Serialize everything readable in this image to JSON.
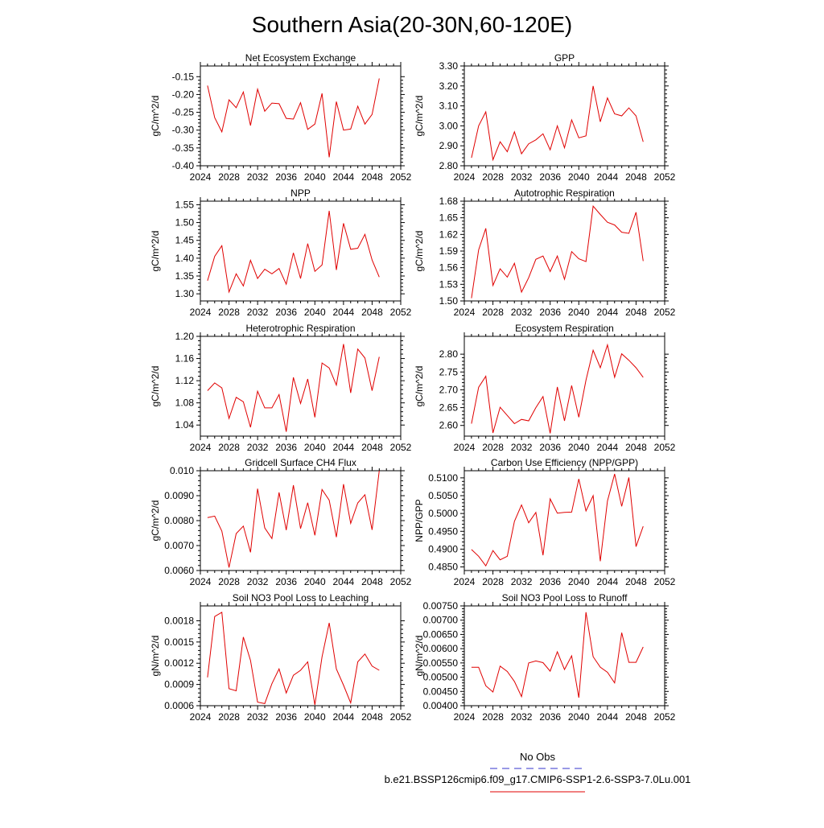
{
  "figure": {
    "title": "Southern Asia(20-30N,60-120E)"
  },
  "legend": {
    "obs_label": "No Obs",
    "obs_color": "#3333cc",
    "case_label": "b.e21.BSSP126cmip6.f09_g17.CMIP6-SSP1-2.6-SSP3-7.0Lu.001",
    "case_color": "#e00000"
  },
  "chart_data": [
    {
      "type": "line",
      "title": "Net Ecosystem Exchange",
      "ylabel": "gC/m^2/d",
      "xlim": [
        2024,
        2052
      ],
      "xticks": [
        "2024",
        "2028",
        "2032",
        "2036",
        "2040",
        "2044",
        "2048",
        "2052"
      ],
      "ylim": [
        -0.4,
        -0.12
      ],
      "yticks": [
        "-0.15",
        "-0.20",
        "-0.25",
        "-0.30",
        "-0.35",
        "-0.40"
      ],
      "yticks_values": [
        -0.15,
        -0.2,
        -0.25,
        -0.3,
        -0.35,
        -0.4
      ],
      "x": [
        2025,
        2026,
        2027,
        2028,
        2029,
        2030,
        2031,
        2032,
        2033,
        2034,
        2035,
        2036,
        2037,
        2038,
        2039,
        2040,
        2041,
        2042,
        2043,
        2044,
        2045,
        2046,
        2047,
        2048,
        2049
      ],
      "series": [
        {
          "color": "#e00000",
          "values": [
            -0.175,
            -0.265,
            -0.305,
            -0.215,
            -0.237,
            -0.193,
            -0.287,
            -0.185,
            -0.247,
            -0.224,
            -0.226,
            -0.267,
            -0.269,
            -0.223,
            -0.298,
            -0.283,
            -0.197,
            -0.376,
            -0.22,
            -0.3,
            -0.297,
            -0.233,
            -0.283,
            -0.256,
            -0.155
          ]
        }
      ]
    },
    {
      "type": "line",
      "title": "GPP",
      "ylabel": "gC/m^2/d",
      "xlim": [
        2024,
        2052
      ],
      "xticks": [
        "2024",
        "2028",
        "2032",
        "2036",
        "2040",
        "2044",
        "2048",
        "2052"
      ],
      "ylim": [
        2.8,
        3.3
      ],
      "yticks": [
        "3.30",
        "3.20",
        "3.10",
        "3.00",
        "2.90",
        "2.80"
      ],
      "yticks_values": [
        3.3,
        3.2,
        3.1,
        3.0,
        2.9,
        2.8
      ],
      "x": [
        2025,
        2026,
        2027,
        2028,
        2029,
        2030,
        2031,
        2032,
        2033,
        2034,
        2035,
        2036,
        2037,
        2038,
        2039,
        2040,
        2041,
        2042,
        2043,
        2044,
        2045,
        2046,
        2047,
        2048,
        2049
      ],
      "series": [
        {
          "color": "#e00000",
          "values": [
            2.84,
            3.0,
            3.07,
            2.83,
            2.92,
            2.87,
            2.97,
            2.86,
            2.91,
            2.93,
            2.96,
            2.88,
            3.0,
            2.89,
            3.03,
            2.94,
            2.95,
            3.2,
            3.02,
            3.14,
            3.06,
            3.05,
            3.09,
            3.05,
            2.92
          ]
        }
      ]
    },
    {
      "type": "line",
      "title": "NPP",
      "ylabel": "gC/m^2/d",
      "xlim": [
        2024,
        2052
      ],
      "xticks": [
        "2024",
        "2028",
        "2032",
        "2036",
        "2040",
        "2044",
        "2048",
        "2052"
      ],
      "ylim": [
        1.28,
        1.56
      ],
      "yticks": [
        "1.55",
        "1.50",
        "1.45",
        "1.40",
        "1.35",
        "1.30"
      ],
      "yticks_values": [
        1.55,
        1.5,
        1.45,
        1.4,
        1.35,
        1.3
      ],
      "x": [
        2025,
        2026,
        2027,
        2028,
        2029,
        2030,
        2031,
        2032,
        2033,
        2034,
        2035,
        2036,
        2037,
        2038,
        2039,
        2040,
        2041,
        2042,
        2043,
        2044,
        2045,
        2046,
        2047,
        2048,
        2049
      ],
      "series": [
        {
          "color": "#e00000",
          "values": [
            1.337,
            1.405,
            1.435,
            1.305,
            1.356,
            1.322,
            1.394,
            1.343,
            1.369,
            1.356,
            1.371,
            1.327,
            1.415,
            1.343,
            1.441,
            1.363,
            1.381,
            1.533,
            1.367,
            1.498,
            1.425,
            1.428,
            1.467,
            1.395,
            1.347
          ]
        }
      ]
    },
    {
      "type": "line",
      "title": "Autotrophic Respiration",
      "ylabel": "gC/m^2/d",
      "xlim": [
        2024,
        2052
      ],
      "xticks": [
        "2024",
        "2028",
        "2032",
        "2036",
        "2040",
        "2044",
        "2048",
        "2052"
      ],
      "ylim": [
        1.5,
        1.68
      ],
      "yticks": [
        "1.68",
        "1.65",
        "1.62",
        "1.59",
        "1.56",
        "1.53",
        "1.50"
      ],
      "yticks_values": [
        1.68,
        1.65,
        1.62,
        1.59,
        1.56,
        1.53,
        1.5
      ],
      "x": [
        2025,
        2026,
        2027,
        2028,
        2029,
        2030,
        2031,
        2032,
        2033,
        2034,
        2035,
        2036,
        2037,
        2038,
        2039,
        2040,
        2041,
        2042,
        2043,
        2044,
        2045,
        2046,
        2047,
        2048,
        2049
      ],
      "series": [
        {
          "color": "#e00000",
          "values": [
            1.505,
            1.592,
            1.631,
            1.528,
            1.558,
            1.543,
            1.568,
            1.516,
            1.542,
            1.575,
            1.581,
            1.553,
            1.581,
            1.539,
            1.589,
            1.576,
            1.571,
            1.671,
            1.656,
            1.642,
            1.637,
            1.624,
            1.622,
            1.66,
            1.572
          ]
        }
      ]
    },
    {
      "type": "line",
      "title": "Heterotrophic Respiration",
      "ylabel": "gC/m^2/d",
      "xlim": [
        2024,
        2052
      ],
      "xticks": [
        "2024",
        "2028",
        "2032",
        "2036",
        "2040",
        "2044",
        "2048",
        "2052"
      ],
      "ylim": [
        1.02,
        1.2
      ],
      "yticks": [
        "1.20",
        "1.16",
        "1.12",
        "1.08",
        "1.04"
      ],
      "yticks_values": [
        1.2,
        1.16,
        1.12,
        1.08,
        1.04
      ],
      "x": [
        2025,
        2026,
        2027,
        2028,
        2029,
        2030,
        2031,
        2032,
        2033,
        2034,
        2035,
        2036,
        2037,
        2038,
        2039,
        2040,
        2041,
        2042,
        2043,
        2044,
        2045,
        2046,
        2047,
        2048,
        2049
      ],
      "series": [
        {
          "color": "#e00000",
          "values": [
            1.102,
            1.116,
            1.107,
            1.052,
            1.09,
            1.082,
            1.036,
            1.101,
            1.071,
            1.071,
            1.095,
            1.028,
            1.126,
            1.079,
            1.123,
            1.054,
            1.152,
            1.143,
            1.112,
            1.186,
            1.098,
            1.177,
            1.161,
            1.102,
            1.163
          ]
        }
      ]
    },
    {
      "type": "line",
      "title": "Ecosystem Respiration",
      "ylabel": "gC/m^2/d",
      "xlim": [
        2024,
        2052
      ],
      "xticks": [
        "2024",
        "2028",
        "2032",
        "2036",
        "2040",
        "2044",
        "2048",
        "2052"
      ],
      "ylim": [
        2.57,
        2.85
      ],
      "yticks": [
        "2.80",
        "2.75",
        "2.70",
        "2.65",
        "2.60"
      ],
      "yticks_values": [
        2.8,
        2.75,
        2.7,
        2.65,
        2.6
      ],
      "x": [
        2025,
        2026,
        2027,
        2028,
        2029,
        2030,
        2031,
        2032,
        2033,
        2034,
        2035,
        2036,
        2037,
        2038,
        2039,
        2040,
        2041,
        2042,
        2043,
        2044,
        2045,
        2046,
        2047,
        2048,
        2049
      ],
      "series": [
        {
          "color": "#e00000",
          "values": [
            2.605,
            2.707,
            2.738,
            2.579,
            2.651,
            2.628,
            2.605,
            2.617,
            2.613,
            2.65,
            2.681,
            2.578,
            2.708,
            2.613,
            2.712,
            2.623,
            2.727,
            2.811,
            2.762,
            2.826,
            2.735,
            2.801,
            2.783,
            2.762,
            2.735
          ]
        }
      ]
    },
    {
      "type": "line",
      "title": "Gridcell Surface CH4 Flux",
      "ylabel": "gC/m^2/d",
      "xlim": [
        2024,
        2052
      ],
      "xticks": [
        "2024",
        "2028",
        "2032",
        "2036",
        "2040",
        "2044",
        "2048",
        "2052"
      ],
      "ylim": [
        0.006,
        0.01
      ],
      "yticks": [
        "0.010",
        "0.0090",
        "0.0080",
        "0.0070",
        "0.0060"
      ],
      "yticks_values": [
        0.01,
        0.009,
        0.008,
        0.007,
        0.006
      ],
      "x": [
        2025,
        2026,
        2027,
        2028,
        2029,
        2030,
        2031,
        2032,
        2033,
        2034,
        2035,
        2036,
        2037,
        2038,
        2039,
        2040,
        2041,
        2042,
        2043,
        2044,
        2045,
        2046,
        2047,
        2048,
        2049
      ],
      "series": [
        {
          "color": "#e00000",
          "values": [
            0.00812,
            0.00818,
            0.00758,
            0.00612,
            0.00748,
            0.00778,
            0.00673,
            0.00928,
            0.00771,
            0.00728,
            0.00913,
            0.00762,
            0.00942,
            0.00768,
            0.00872,
            0.00741,
            0.00925,
            0.00882,
            0.00734,
            0.00946,
            0.00789,
            0.00871,
            0.00904,
            0.00763,
            0.01
          ]
        }
      ]
    },
    {
      "type": "line",
      "title": "Carbon Use Efficiency (NPP/GPP)",
      "ylabel": "NPP/GPP",
      "xlim": [
        2024,
        2052
      ],
      "xticks": [
        "2024",
        "2028",
        "2032",
        "2036",
        "2040",
        "2044",
        "2048",
        "2052"
      ],
      "ylim": [
        0.484,
        0.512
      ],
      "yticks": [
        "0.5100",
        "0.5050",
        "0.5000",
        "0.4950",
        "0.4900",
        "0.4850"
      ],
      "yticks_values": [
        0.51,
        0.505,
        0.5,
        0.495,
        0.49,
        0.485
      ],
      "x": [
        2025,
        2026,
        2027,
        2028,
        2029,
        2030,
        2031,
        2032,
        2033,
        2034,
        2035,
        2036,
        2037,
        2038,
        2039,
        2040,
        2041,
        2042,
        2043,
        2044,
        2045,
        2046,
        2047,
        2048,
        2049
      ],
      "series": [
        {
          "color": "#e00000",
          "values": [
            0.4899,
            0.488,
            0.4853,
            0.4896,
            0.487,
            0.488,
            0.4978,
            0.5024,
            0.4974,
            0.5003,
            0.4883,
            0.5041,
            0.5001,
            0.5003,
            0.5004,
            0.5097,
            0.5007,
            0.505,
            0.4866,
            0.5035,
            0.5111,
            0.502,
            0.5101,
            0.4907,
            0.4964
          ]
        }
      ]
    },
    {
      "type": "line",
      "title": "Soil NO3 Pool Loss to Leaching",
      "ylabel": "gN/m^2/d",
      "xlim": [
        2024,
        2052
      ],
      "xticks": [
        "2024",
        "2028",
        "2032",
        "2036",
        "2040",
        "2044",
        "2048",
        "2052"
      ],
      "ylim": [
        0.0006,
        0.00201
      ],
      "yticks": [
        "0.0018",
        "0.0015",
        "0.0012",
        "0.0009",
        "0.0006"
      ],
      "yticks_values": [
        0.0018,
        0.0015,
        0.0012,
        0.0009,
        0.0006
      ],
      "x": [
        2025,
        2026,
        2027,
        2028,
        2029,
        2030,
        2031,
        2032,
        2033,
        2034,
        2035,
        2036,
        2037,
        2038,
        2039,
        2040,
        2041,
        2042,
        2043,
        2044,
        2045,
        2046,
        2047,
        2048,
        2049
      ],
      "series": [
        {
          "color": "#e00000",
          "values": [
            0.001,
            0.00186,
            0.00192,
            0.00084,
            0.00081,
            0.00157,
            0.00124,
            0.00065,
            0.00063,
            0.00091,
            0.00112,
            0.00078,
            0.00103,
            0.0011,
            0.00122,
            0.00061,
            0.00129,
            0.00177,
            0.00112,
            0.00089,
            0.00064,
            0.00122,
            0.00133,
            0.00116,
            0.0011
          ]
        }
      ]
    },
    {
      "type": "line",
      "title": "Soil NO3 Pool Loss to Runoff",
      "ylabel": "gN/m^2/d",
      "xlim": [
        2024,
        2052
      ],
      "xticks": [
        "2024",
        "2028",
        "2032",
        "2036",
        "2040",
        "2044",
        "2048",
        "2052"
      ],
      "ylim": [
        0.004,
        0.0075
      ],
      "yticks": [
        "0.00750",
        "0.00700",
        "0.00650",
        "0.00600",
        "0.00550",
        "0.00500",
        "0.00450",
        "0.00400"
      ],
      "yticks_values": [
        0.0075,
        0.007,
        0.0065,
        0.006,
        0.0055,
        0.005,
        0.0045,
        0.004
      ],
      "x": [
        2025,
        2026,
        2027,
        2028,
        2029,
        2030,
        2031,
        2032,
        2033,
        2034,
        2035,
        2036,
        2037,
        2038,
        2039,
        2040,
        2041,
        2042,
        2043,
        2044,
        2045,
        2046,
        2047,
        2048,
        2049
      ],
      "series": [
        {
          "color": "#e00000",
          "values": [
            0.00535,
            0.00535,
            0.0047,
            0.00448,
            0.00539,
            0.0052,
            0.00485,
            0.00432,
            0.0055,
            0.00557,
            0.00551,
            0.00521,
            0.00589,
            0.00527,
            0.00575,
            0.00428,
            0.00728,
            0.00572,
            0.00535,
            0.00517,
            0.0048,
            0.00656,
            0.00552,
            0.00552,
            0.00606
          ]
        }
      ]
    }
  ]
}
